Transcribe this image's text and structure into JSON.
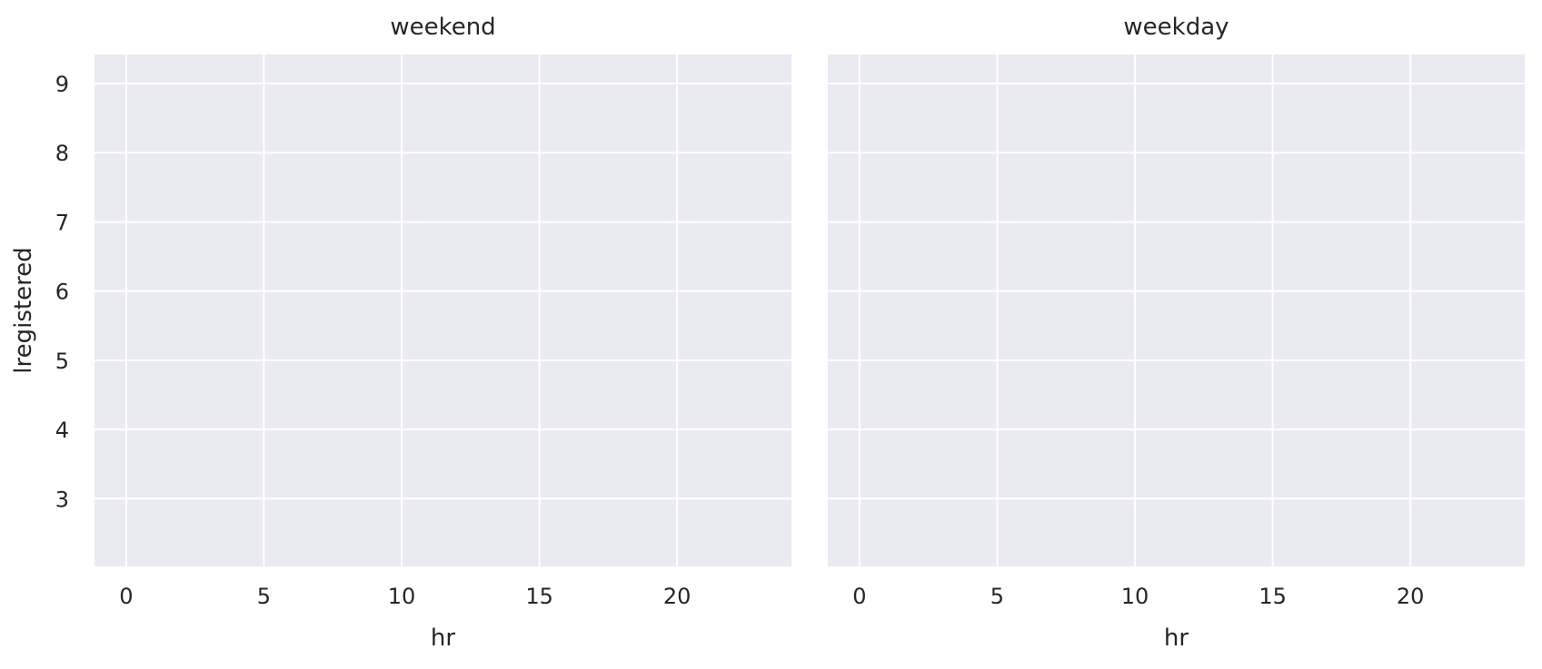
{
  "chart_data": {
    "type": "scatter",
    "layout": "facet-grid",
    "facets": [
      {
        "title": "weekend",
        "xlabel": "hr",
        "ylabel": "lregistered",
        "xlim": [
          -1.15,
          24.15
        ],
        "ylim": [
          2.02,
          9.42
        ],
        "xticks": [
          0,
          5,
          10,
          15,
          20
        ],
        "yticks": [
          3,
          4,
          5,
          6,
          7,
          8,
          9
        ],
        "x": [],
        "y": []
      },
      {
        "title": "weekday",
        "xlabel": "hr",
        "ylabel": "",
        "xlim": [
          -1.15,
          24.15
        ],
        "ylim": [
          2.02,
          9.42
        ],
        "xticks": [
          0,
          5,
          10,
          15,
          20
        ],
        "yticks": [
          3,
          4,
          5,
          6,
          7,
          8,
          9
        ],
        "x": [],
        "y": []
      }
    ],
    "sharey": true,
    "grid": true,
    "style": {
      "panel_background": "#eaeaf2",
      "grid_color": "#ffffff",
      "text_color": "#262626"
    }
  }
}
